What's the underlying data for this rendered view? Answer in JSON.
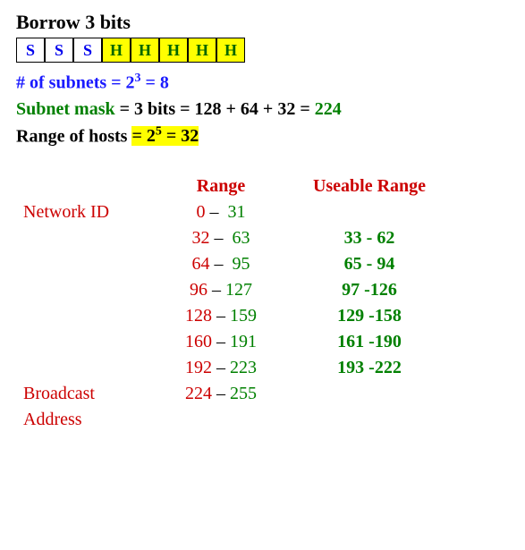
{
  "title": "Borrow 3 bits",
  "bits": [
    "S",
    "S",
    "S",
    "H",
    "H",
    "H",
    "H",
    "H"
  ],
  "subnets_line": {
    "prefix": "# of subnets = 2",
    "exp": "3",
    "suffix": " = 8"
  },
  "mask_line": {
    "prefix": "Subnet mask",
    "mid": " = 3 bits = 128 + 64 + 32 = ",
    "result": "224"
  },
  "hosts_line": {
    "prefix": "Range of hosts ",
    "hl_pre": "= 2",
    "hl_exp": "5",
    "hl_suf": " = 32"
  },
  "headers": {
    "range": "Range",
    "usable": "Useable Range"
  },
  "labels": {
    "network": "Network ID",
    "broadcast1": "Broadcast",
    "broadcast2": "Address"
  },
  "rows": [
    {
      "label": "Network ID",
      "from": "0",
      "to": "31",
      "usable": ""
    },
    {
      "label": "",
      "from": "32",
      "to": "63",
      "usable": "33 - 62"
    },
    {
      "label": "",
      "from": "64",
      "to": "95",
      "usable": "65 - 94"
    },
    {
      "label": "",
      "from": "96",
      "to": "127",
      "usable": "97 -126"
    },
    {
      "label": "",
      "from": "128",
      "to": "159",
      "usable": "129 -158"
    },
    {
      "label": "",
      "from": "160",
      "to": "191",
      "usable": "161 -190"
    },
    {
      "label": "",
      "from": "192",
      "to": "223",
      "usable": "193 -222"
    },
    {
      "label": "Broadcast",
      "from": "224",
      "to": "255",
      "usable": ""
    }
  ]
}
